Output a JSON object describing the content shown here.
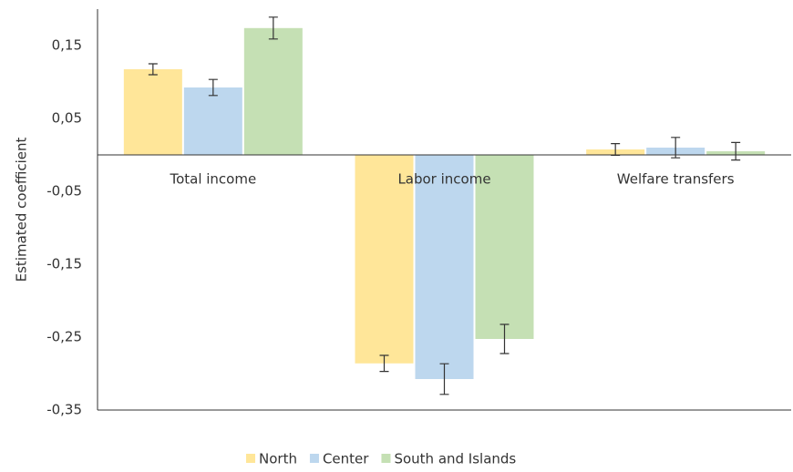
{
  "chart_data": {
    "type": "bar",
    "y_label": "Estimated coefficient",
    "categories": [
      "Total income",
      "Labor income",
      "Welfare transfers"
    ],
    "series": [
      {
        "name": "North",
        "color": "#ffe699",
        "values": [
          0.1175,
          -0.286,
          0.0075
        ],
        "errors": [
          0.0075,
          0.011,
          0.008
        ]
      },
      {
        "name": "Center",
        "color": "#bdd7ee",
        "values": [
          0.0925,
          -0.3075,
          0.01
        ],
        "errors": [
          0.011,
          0.021,
          0.014
        ]
      },
      {
        "name": "South and Islands",
        "color": "#c5e0b4",
        "values": [
          0.174,
          -0.2525,
          0.005
        ],
        "errors": [
          0.015,
          0.02,
          0.012
        ]
      }
    ],
    "ylim": [
      -0.35,
      0.2
    ],
    "yticks": [
      {
        "value": 0.15,
        "label": "0,15"
      },
      {
        "value": 0.05,
        "label": "0,05"
      },
      {
        "value": -0.05,
        "label": "-0,05"
      },
      {
        "value": -0.15,
        "label": "-0,15"
      },
      {
        "value": -0.25,
        "label": "-0,25"
      },
      {
        "value": -0.35,
        "label": "-0,35"
      }
    ],
    "legend": "bottom"
  }
}
